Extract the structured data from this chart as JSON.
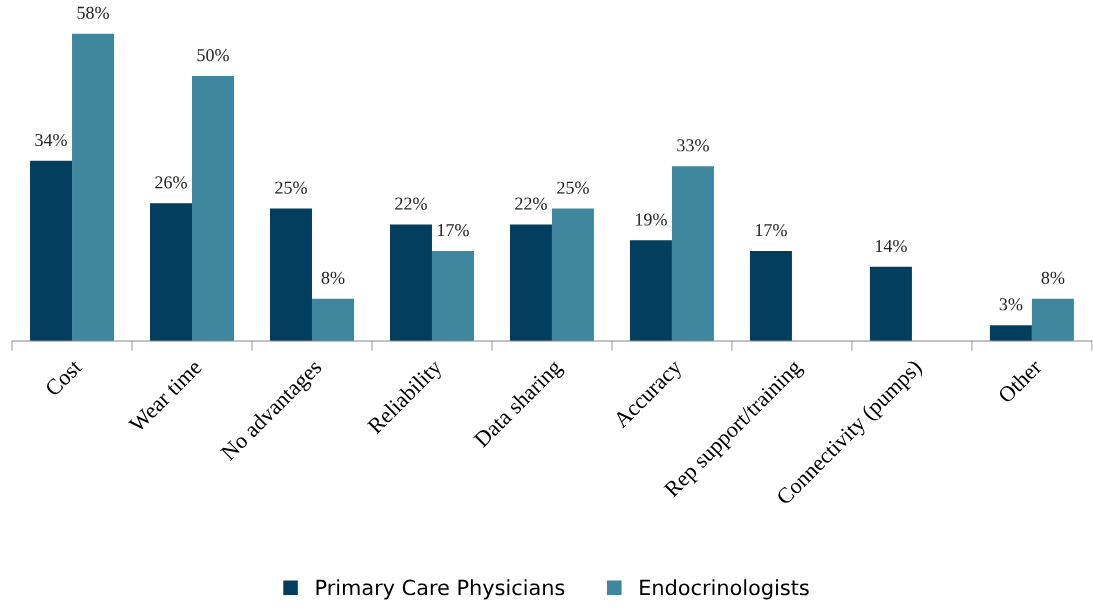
{
  "chart_data": {
    "type": "bar",
    "categories": [
      "Cost",
      "Wear time",
      "No advantages",
      "Reliability",
      "Data sharing",
      "Accuracy",
      "Rep support/training",
      "Connectivity (pumps)",
      "Other"
    ],
    "series": [
      {
        "name": "Primary Care Physicians",
        "color": "#023f5f",
        "values": [
          34,
          26,
          25,
          22,
          22,
          19,
          17,
          14,
          3
        ],
        "value_labels": [
          "34%",
          "26%",
          "25%",
          "22%",
          "22%",
          "19%",
          "17%",
          "14%",
          "3%"
        ]
      },
      {
        "name": "Endocrinologists",
        "color": "#3f879f",
        "values": [
          58,
          50,
          8,
          17,
          25,
          33,
          null,
          null,
          8
        ],
        "value_labels": [
          "58%",
          "50%",
          "8%",
          "17%",
          "25%",
          "33%",
          null,
          null,
          "8%"
        ]
      }
    ],
    "legend": "bottom",
    "grid": false
  }
}
